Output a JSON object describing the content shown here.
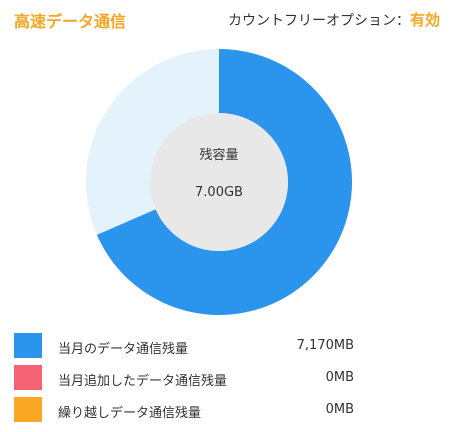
{
  "header": {
    "title": "高速データ通信",
    "option_label": "カウントフリーオプション：",
    "option_value": "有効"
  },
  "gauge": {
    "center_title": "残容量",
    "center_value": "7.00GB",
    "used_fraction": 0.315,
    "colors": {
      "remaining": "#2b95ee",
      "used": "#e4f2fc",
      "inner": "#e8e8e8",
      "title_accent": "#f5a623"
    }
  },
  "legend": [
    {
      "label": "当月のデータ通信残量",
      "value": "7,170MB",
      "color": "#2b95ee"
    },
    {
      "label": "当月追加したデータ通信残量",
      "value": "0MB",
      "color": "#f56274"
    },
    {
      "label": "繰り越しデータ通信残量",
      "value": "0MB",
      "color": "#f9a825"
    }
  ]
}
